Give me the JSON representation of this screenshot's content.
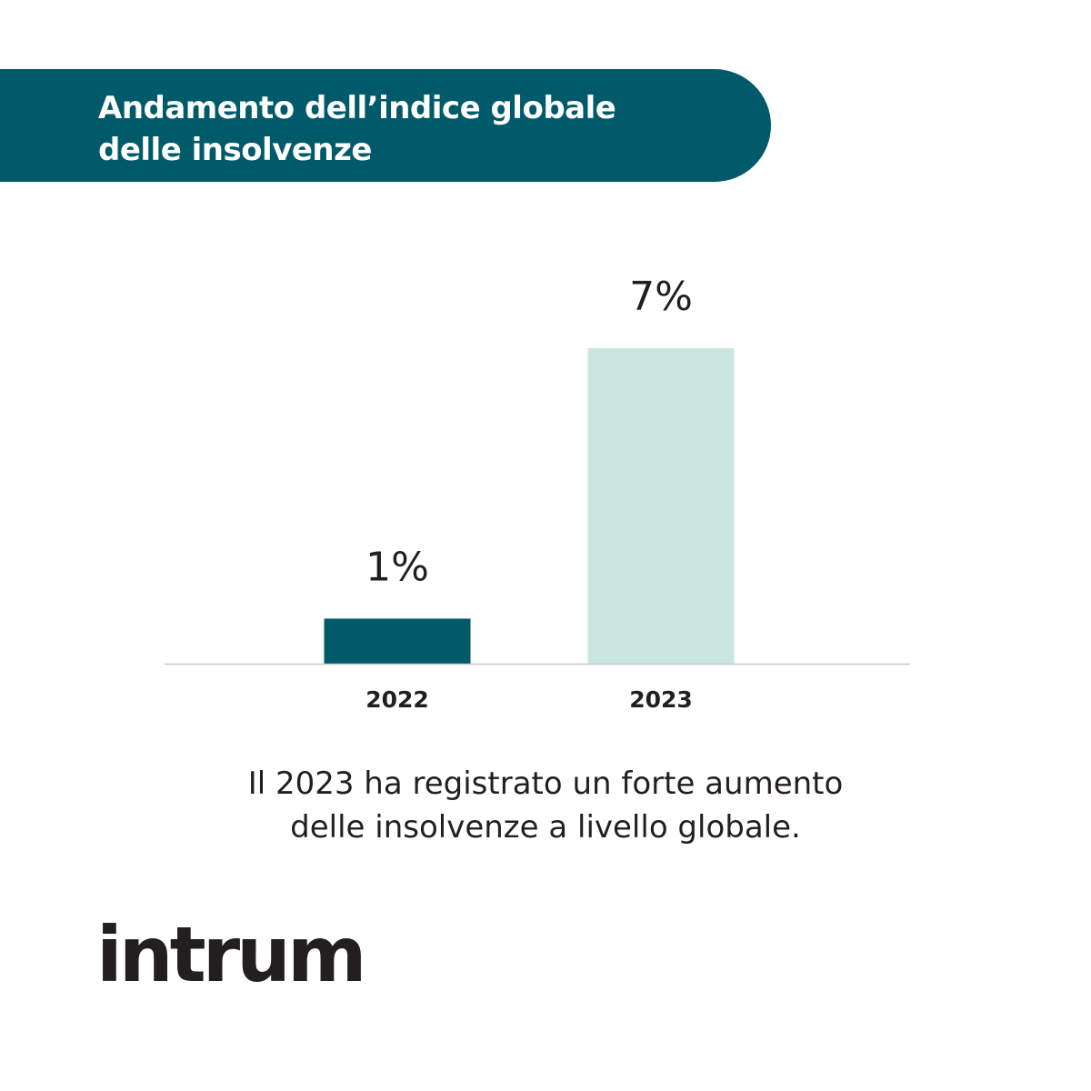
{
  "theme": {
    "primary": "#005a69",
    "secondary": "#c8e5e0",
    "text": "#231f20",
    "axis": "#c8c8c8"
  },
  "header": {
    "title_line1": "Andamento dell’indice globale",
    "title_line2": "delle insolvenze"
  },
  "chart_data": {
    "type": "bar",
    "categories": [
      "2022",
      "2023"
    ],
    "values": [
      1,
      7
    ],
    "value_labels": [
      "1%",
      "7%"
    ],
    "bar_colors": [
      "#005a69",
      "#c8e5e0"
    ],
    "ylim": [
      0,
      7
    ],
    "grid": false,
    "legend": "none",
    "title": "",
    "xlabel": "",
    "ylabel": ""
  },
  "caption": {
    "line1": "Il 2023 ha registrato un forte aumento",
    "line2": "delle insolvenze a livello globale."
  },
  "brand": {
    "logo_text": "intrum"
  }
}
